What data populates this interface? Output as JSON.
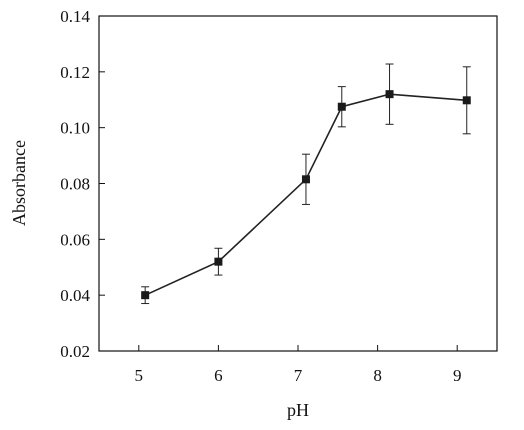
{
  "chart_data": {
    "type": "line",
    "xlabel": "pH",
    "ylabel": "Absorbance",
    "xlim": [
      4.5,
      9.5
    ],
    "ylim": [
      0.02,
      0.14
    ],
    "xticks": [
      5,
      6,
      7,
      8,
      9
    ],
    "yticks": [
      0.02,
      0.04,
      0.06,
      0.08,
      0.1,
      0.12,
      0.14
    ],
    "xtick_labels": [
      "5",
      "6",
      "7",
      "8",
      "9"
    ],
    "ytick_labels": [
      "0.02",
      "0.04",
      "0.06",
      "0.08",
      "0.10",
      "0.12",
      "0.14"
    ],
    "grid": false,
    "series": [
      {
        "x": [
          5.08,
          6.0,
          7.1,
          7.55,
          8.15,
          9.12
        ],
        "y": [
          0.04,
          0.052,
          0.0815,
          0.1075,
          0.112,
          0.1098
        ],
        "err": [
          0.003,
          0.0048,
          0.009,
          0.0072,
          0.0108,
          0.012
        ],
        "marker": "square",
        "color": "#1a1a1a"
      }
    ]
  }
}
